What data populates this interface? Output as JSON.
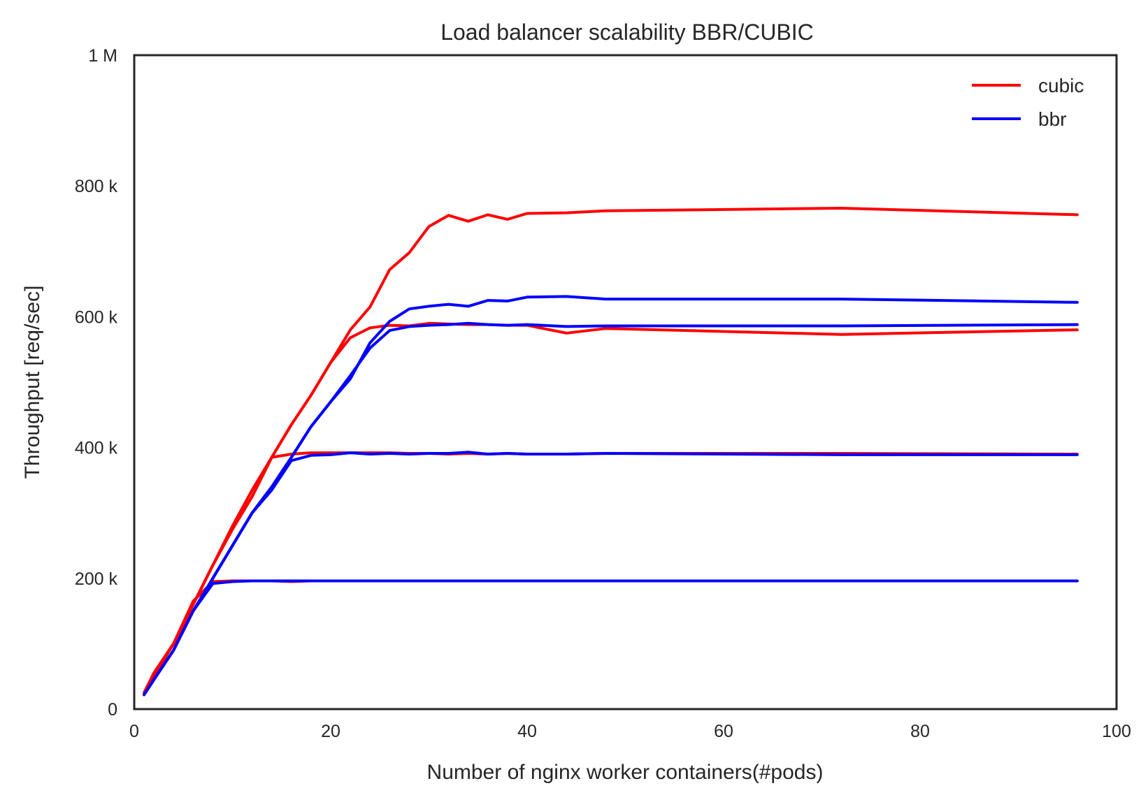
{
  "chart_data": {
    "type": "line",
    "title": "Load balancer scalability BBR/CUBIC",
    "xlabel": "Number of nginx worker containers(#pods)",
    "ylabel": "Throughput [req/sec]",
    "xlim": [
      0,
      100
    ],
    "ylim": [
      0,
      1000000
    ],
    "xticks": [
      0,
      20,
      40,
      60,
      80,
      100
    ],
    "xtick_labels": [
      "0",
      "20",
      "40",
      "60",
      "80",
      "100"
    ],
    "yticks": [
      0,
      200000,
      400000,
      600000,
      800000,
      1000000
    ],
    "ytick_labels": [
      "0",
      "200 k",
      "400 k",
      "600 k",
      "800 k",
      "1 M"
    ],
    "grid": false,
    "legend_position": "top-right",
    "legend": [
      {
        "label": "cubic",
        "color": "#ff0000"
      },
      {
        "label": "bbr",
        "color": "#0000ff"
      }
    ],
    "series": [
      {
        "legend": "cubic",
        "color": "#ff0000",
        "x": [
          1,
          2,
          4,
          6,
          8,
          10,
          12,
          14,
          16,
          18,
          20,
          22,
          24,
          26,
          28,
          30,
          32,
          34,
          36,
          38,
          40,
          44,
          48,
          72,
          96
        ],
        "y": [
          22000,
          50000,
          100000,
          165000,
          195000,
          196000,
          196000,
          196000,
          195000,
          196000,
          196000,
          196000,
          196000,
          196000,
          196000,
          196000,
          196000,
          196000,
          196000,
          196000,
          196000,
          196000,
          196000,
          196000,
          196000
        ]
      },
      {
        "legend": "bbr",
        "color": "#0000ff",
        "x": [
          1,
          2,
          4,
          6,
          8,
          10,
          12,
          14,
          16,
          18,
          20,
          22,
          24,
          26,
          28,
          30,
          32,
          34,
          36,
          38,
          40,
          44,
          48,
          72,
          96
        ],
        "y": [
          22000,
          45000,
          90000,
          150000,
          192000,
          195000,
          196000,
          196000,
          196000,
          196000,
          196000,
          196000,
          196000,
          196000,
          196000,
          196000,
          196000,
          196000,
          196000,
          196000,
          196000,
          196000,
          196000,
          196000,
          196000
        ]
      },
      {
        "legend": "cubic",
        "color": "#ff0000",
        "x": [
          1,
          2,
          4,
          6,
          8,
          10,
          12,
          13,
          14,
          16,
          18,
          20,
          22,
          24,
          26,
          28,
          30,
          32,
          34,
          36,
          38,
          40,
          44,
          48,
          72,
          96
        ],
        "y": [
          25000,
          55000,
          100000,
          160000,
          220000,
          280000,
          335000,
          360000,
          385000,
          390000,
          392000,
          392000,
          392000,
          392000,
          392000,
          391000,
          391000,
          390000,
          391000,
          390000,
          391000,
          390000,
          390000,
          391000,
          391000,
          390000
        ]
      },
      {
        "legend": "bbr",
        "color": "#0000ff",
        "x": [
          1,
          2,
          4,
          6,
          8,
          10,
          12,
          14,
          16,
          18,
          20,
          22,
          24,
          26,
          28,
          30,
          32,
          34,
          36,
          38,
          40,
          44,
          48,
          72,
          96
        ],
        "y": [
          22000,
          45000,
          90000,
          150000,
          200000,
          250000,
          300000,
          335000,
          380000,
          388000,
          389000,
          392000,
          390000,
          391000,
          390000,
          391000,
          391000,
          393000,
          390000,
          391000,
          390000,
          390000,
          391000,
          389000,
          389000
        ]
      },
      {
        "legend": "cubic",
        "color": "#ff0000",
        "x": [
          1,
          2,
          4,
          6,
          8,
          10,
          12,
          14,
          16,
          18,
          20,
          22,
          24,
          26,
          28,
          30,
          32,
          34,
          36,
          38,
          40,
          44,
          48,
          72,
          96
        ],
        "y": [
          25000,
          55000,
          100000,
          160000,
          220000,
          275000,
          325000,
          385000,
          435000,
          480000,
          530000,
          568000,
          583000,
          587000,
          586000,
          590000,
          589000,
          588000,
          588000,
          587000,
          587000,
          575000,
          582000,
          573000,
          580000
        ]
      },
      {
        "legend": "bbr",
        "color": "#0000ff",
        "x": [
          1,
          2,
          4,
          6,
          8,
          10,
          12,
          14,
          16,
          18,
          20,
          22,
          24,
          26,
          28,
          30,
          32,
          34,
          36,
          38,
          40,
          44,
          48,
          72,
          96
        ],
        "y": [
          22000,
          45000,
          90000,
          150000,
          200000,
          250000,
          300000,
          340000,
          385000,
          432000,
          470000,
          510000,
          552000,
          579000,
          585000,
          587000,
          588000,
          590000,
          588000,
          587000,
          588000,
          585000,
          586000,
          586000,
          588000
        ]
      },
      {
        "legend": "cubic",
        "color": "#ff0000",
        "x": [
          1,
          2,
          4,
          6,
          8,
          10,
          12,
          14,
          16,
          18,
          20,
          22,
          24,
          26,
          28,
          30,
          32,
          34,
          36,
          38,
          40,
          44,
          48,
          72,
          96
        ],
        "y": [
          25000,
          55000,
          100000,
          160000,
          220000,
          275000,
          325000,
          385000,
          435000,
          480000,
          530000,
          580000,
          615000,
          672000,
          698000,
          738000,
          755000,
          746000,
          756000,
          749000,
          758000,
          759000,
          762000,
          766000,
          756000
        ]
      },
      {
        "legend": "bbr",
        "color": "#0000ff",
        "x": [
          1,
          2,
          4,
          6,
          8,
          10,
          12,
          14,
          16,
          18,
          20,
          22,
          24,
          26,
          28,
          30,
          32,
          34,
          36,
          38,
          40,
          44,
          48,
          72,
          96
        ],
        "y": [
          22000,
          45000,
          90000,
          150000,
          200000,
          250000,
          300000,
          340000,
          385000,
          432000,
          470000,
          505000,
          560000,
          593000,
          612000,
          616000,
          619000,
          616000,
          625000,
          624000,
          630000,
          631000,
          627000,
          627000,
          622000
        ]
      }
    ]
  }
}
